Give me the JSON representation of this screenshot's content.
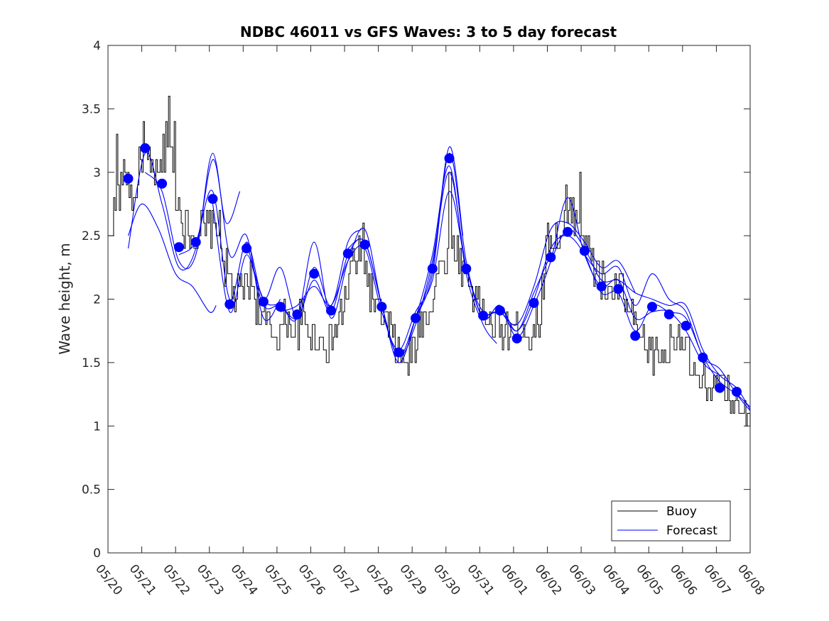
{
  "chart_data": {
    "type": "line",
    "title": "NDBC 46011 vs GFS Waves: 3 to 5 day forecast",
    "ylabel": "Wave height, m",
    "xlabel": "",
    "ylim": [
      0,
      4
    ],
    "yticks": [
      0,
      0.5,
      1,
      1.5,
      2,
      2.5,
      3,
      3.5,
      4
    ],
    "xlim": [
      "05/20",
      "06/08"
    ],
    "xticks": [
      "05/20",
      "05/21",
      "05/22",
      "05/23",
      "05/24",
      "05/25",
      "05/26",
      "05/27",
      "05/28",
      "05/29",
      "05/30",
      "05/31",
      "06/01",
      "06/02",
      "06/03",
      "06/04",
      "06/05",
      "06/06",
      "06/07",
      "06/08"
    ],
    "legend": {
      "placement": "bottom-right",
      "entries": [
        "Buoy",
        "Forecast"
      ]
    },
    "colors": {
      "buoy": "#000000",
      "forecast": "#0000ff"
    },
    "buoy_anchors": [
      [
        0.0,
        2.45
      ],
      [
        0.25,
        2.8
      ],
      [
        0.5,
        3.0
      ],
      [
        0.75,
        2.75
      ],
      [
        1.0,
        3.15
      ],
      [
        1.25,
        3.0
      ],
      [
        1.5,
        2.95
      ],
      [
        1.75,
        3.25
      ],
      [
        2.0,
        2.85
      ],
      [
        2.25,
        2.6
      ],
      [
        2.5,
        2.5
      ],
      [
        2.75,
        2.55
      ],
      [
        3.0,
        2.55
      ],
      [
        3.25,
        2.6
      ],
      [
        3.5,
        2.2
      ],
      [
        3.75,
        2.0
      ],
      [
        4.0,
        2.1
      ],
      [
        4.25,
        2.15
      ],
      [
        4.5,
        1.85
      ],
      [
        4.75,
        1.8
      ],
      [
        5.0,
        1.7
      ],
      [
        5.25,
        1.85
      ],
      [
        5.5,
        1.75
      ],
      [
        5.75,
        1.85
      ],
      [
        6.0,
        1.75
      ],
      [
        6.25,
        1.7
      ],
      [
        6.5,
        1.65
      ],
      [
        6.75,
        1.75
      ],
      [
        7.0,
        2.0
      ],
      [
        7.25,
        2.3
      ],
      [
        7.5,
        2.3
      ],
      [
        7.75,
        2.1
      ],
      [
        8.0,
        1.9
      ],
      [
        8.25,
        1.8
      ],
      [
        8.5,
        1.6
      ],
      [
        8.75,
        1.5
      ],
      [
        9.0,
        1.55
      ],
      [
        9.25,
        1.8
      ],
      [
        9.5,
        1.95
      ],
      [
        9.75,
        2.2
      ],
      [
        10.0,
        2.3
      ],
      [
        10.25,
        2.4
      ],
      [
        10.5,
        2.25
      ],
      [
        10.75,
        2.1
      ],
      [
        11.0,
        1.95
      ],
      [
        11.25,
        1.8
      ],
      [
        11.5,
        1.75
      ],
      [
        11.75,
        1.75
      ],
      [
        12.0,
        1.75
      ],
      [
        12.25,
        1.8
      ],
      [
        12.5,
        1.7
      ],
      [
        12.75,
        1.85
      ],
      [
        13.0,
        2.5
      ],
      [
        13.25,
        2.45
      ],
      [
        13.5,
        2.55
      ],
      [
        13.75,
        2.7
      ],
      [
        14.0,
        2.6
      ],
      [
        14.25,
        2.3
      ],
      [
        14.5,
        2.2
      ],
      [
        14.75,
        2.05
      ],
      [
        15.0,
        2.1
      ],
      [
        15.25,
        2.05
      ],
      [
        15.5,
        1.8
      ],
      [
        15.75,
        1.65
      ],
      [
        16.0,
        1.6
      ],
      [
        16.25,
        1.55
      ],
      [
        16.5,
        1.55
      ],
      [
        16.75,
        1.75
      ],
      [
        17.0,
        1.7
      ],
      [
        17.25,
        1.45
      ],
      [
        17.5,
        1.3
      ],
      [
        17.75,
        1.35
      ],
      [
        18.0,
        1.3
      ],
      [
        18.25,
        1.25
      ],
      [
        18.5,
        1.2
      ],
      [
        18.75,
        1.15
      ],
      [
        19.0,
        1.12
      ]
    ],
    "buoy_peaks": [
      [
        1.7,
        3.4
      ],
      [
        1.8,
        3.6
      ],
      [
        1.95,
        3.4
      ],
      [
        0.25,
        3.3
      ],
      [
        1.05,
        3.4
      ],
      [
        13.95,
        3.0
      ],
      [
        13.55,
        2.9
      ],
      [
        10.1,
        2.95
      ],
      [
        7.55,
        2.6
      ]
    ],
    "forecast_markers": [
      [
        0.6,
        2.95
      ],
      [
        1.1,
        3.19
      ],
      [
        1.6,
        2.91
      ],
      [
        2.1,
        2.41
      ],
      [
        2.6,
        2.45
      ],
      [
        3.1,
        2.79
      ],
      [
        3.6,
        1.96
      ],
      [
        4.1,
        2.4
      ],
      [
        4.6,
        1.98
      ],
      [
        5.1,
        1.94
      ],
      [
        5.6,
        1.88
      ],
      [
        6.1,
        2.2
      ],
      [
        6.6,
        1.91
      ],
      [
        7.1,
        2.36
      ],
      [
        7.6,
        2.43
      ],
      [
        8.1,
        1.94
      ],
      [
        8.6,
        1.58
      ],
      [
        9.1,
        1.85
      ],
      [
        9.6,
        2.24
      ],
      [
        10.1,
        3.11
      ],
      [
        10.6,
        2.24
      ],
      [
        11.1,
        1.87
      ],
      [
        11.6,
        1.91
      ],
      [
        12.1,
        1.69
      ],
      [
        12.6,
        1.97
      ],
      [
        13.1,
        2.33
      ],
      [
        13.6,
        2.53
      ],
      [
        14.1,
        2.38
      ],
      [
        14.6,
        2.1
      ],
      [
        15.1,
        2.08
      ],
      [
        15.6,
        1.71
      ],
      [
        16.1,
        1.94
      ],
      [
        16.6,
        1.88
      ],
      [
        17.1,
        1.79
      ],
      [
        17.6,
        1.54
      ],
      [
        18.1,
        1.3
      ],
      [
        18.6,
        1.27
      ]
    ],
    "forecast_runs": [
      [
        [
          0.6,
          2.5
        ],
        [
          1.0,
          2.75
        ],
        [
          1.5,
          2.55
        ],
        [
          2.0,
          2.2
        ],
        [
          2.5,
          2.1
        ],
        [
          3.0,
          1.9
        ],
        [
          3.2,
          1.95
        ]
      ],
      [
        [
          0.6,
          2.4
        ],
        [
          1.1,
          3.15
        ],
        [
          1.6,
          2.75
        ],
        [
          2.1,
          2.25
        ],
        [
          2.6,
          2.4
        ],
        [
          3.1,
          3.1
        ],
        [
          3.5,
          2.6
        ],
        [
          3.9,
          2.85
        ]
      ],
      [
        [
          1.1,
          3.0
        ],
        [
          1.6,
          2.85
        ],
        [
          2.1,
          2.3
        ],
        [
          2.6,
          2.35
        ],
        [
          3.1,
          3.15
        ],
        [
          3.6,
          2.35
        ],
        [
          4.1,
          2.5
        ],
        [
          4.6,
          1.85
        ],
        [
          5.1,
          2.0
        ]
      ],
      [
        [
          2.1,
          2.35
        ],
        [
          2.6,
          2.45
        ],
        [
          3.1,
          2.85
        ],
        [
          3.6,
          2.0
        ],
        [
          4.1,
          2.45
        ],
        [
          4.6,
          2.0
        ],
        [
          5.1,
          2.25
        ],
        [
          5.6,
          1.85
        ],
        [
          6.1,
          2.25
        ],
        [
          6.6,
          1.95
        ],
        [
          7.1,
          2.45
        ],
        [
          7.5,
          2.55
        ]
      ],
      [
        [
          3.1,
          2.75
        ],
        [
          3.6,
          1.9
        ],
        [
          4.1,
          2.35
        ],
        [
          4.6,
          1.95
        ],
        [
          5.1,
          1.95
        ],
        [
          5.6,
          1.85
        ],
        [
          6.1,
          2.45
        ],
        [
          6.6,
          1.85
        ],
        [
          7.1,
          2.3
        ],
        [
          7.6,
          2.55
        ],
        [
          8.1,
          1.95
        ],
        [
          8.6,
          1.55
        ],
        [
          9.1,
          1.85
        ],
        [
          9.6,
          2.25
        ],
        [
          10.1,
          3.2
        ],
        [
          10.5,
          2.5
        ]
      ],
      [
        [
          4.1,
          2.45
        ],
        [
          4.6,
          2.0
        ],
        [
          5.1,
          1.95
        ],
        [
          5.6,
          1.85
        ],
        [
          6.1,
          2.15
        ],
        [
          6.6,
          1.9
        ],
        [
          7.1,
          2.35
        ],
        [
          7.6,
          2.45
        ],
        [
          8.1,
          1.95
        ],
        [
          8.6,
          1.5
        ],
        [
          9.1,
          1.85
        ],
        [
          9.6,
          2.35
        ],
        [
          10.1,
          3.05
        ],
        [
          10.6,
          2.2
        ],
        [
          11.1,
          1.8
        ],
        [
          11.5,
          1.65
        ]
      ],
      [
        [
          5.1,
          1.9
        ],
        [
          5.6,
          1.95
        ],
        [
          6.1,
          2.1
        ],
        [
          6.6,
          1.95
        ],
        [
          7.1,
          2.3
        ],
        [
          7.6,
          2.4
        ],
        [
          8.1,
          1.9
        ],
        [
          8.6,
          1.6
        ],
        [
          9.1,
          1.9
        ],
        [
          9.6,
          2.15
        ],
        [
          10.1,
          2.85
        ],
        [
          10.6,
          2.25
        ],
        [
          11.1,
          1.85
        ],
        [
          11.6,
          1.95
        ],
        [
          12.1,
          1.75
        ],
        [
          12.6,
          2.05
        ],
        [
          13.1,
          2.35
        ]
      ],
      [
        [
          7.1,
          2.4
        ],
        [
          7.6,
          2.45
        ],
        [
          8.1,
          1.95
        ],
        [
          8.6,
          1.55
        ],
        [
          9.1,
          1.8
        ],
        [
          9.6,
          2.3
        ],
        [
          10.1,
          3.0
        ],
        [
          10.6,
          2.25
        ],
        [
          11.1,
          1.9
        ],
        [
          11.6,
          1.9
        ],
        [
          12.1,
          1.8
        ],
        [
          12.6,
          2.1
        ],
        [
          13.1,
          2.55
        ],
        [
          13.6,
          2.6
        ],
        [
          14.1,
          2.45
        ],
        [
          14.6,
          2.25
        ],
        [
          15.1,
          2.3
        ],
        [
          15.6,
          2.05
        ]
      ],
      [
        [
          9.1,
          1.85
        ],
        [
          9.6,
          2.2
        ],
        [
          10.1,
          3.15
        ],
        [
          10.6,
          2.3
        ],
        [
          11.1,
          1.85
        ],
        [
          11.6,
          1.95
        ],
        [
          12.1,
          1.7
        ],
        [
          12.6,
          1.95
        ],
        [
          13.1,
          2.3
        ],
        [
          13.6,
          2.8
        ],
        [
          14.1,
          2.35
        ],
        [
          14.6,
          2.1
        ],
        [
          15.1,
          2.15
        ],
        [
          15.6,
          1.85
        ],
        [
          16.1,
          1.9
        ],
        [
          16.6,
          1.9
        ],
        [
          17.1,
          1.75
        ],
        [
          17.6,
          1.5
        ],
        [
          18.1,
          1.4
        ]
      ],
      [
        [
          11.1,
          1.85
        ],
        [
          11.6,
          1.9
        ],
        [
          12.1,
          1.75
        ],
        [
          12.6,
          2.0
        ],
        [
          13.1,
          2.4
        ],
        [
          13.6,
          2.5
        ],
        [
          14.1,
          2.35
        ],
        [
          14.6,
          2.05
        ],
        [
          15.1,
          2.05
        ],
        [
          15.6,
          1.75
        ],
        [
          16.1,
          1.95
        ],
        [
          16.6,
          1.9
        ],
        [
          17.1,
          1.85
        ],
        [
          17.6,
          1.55
        ],
        [
          18.1,
          1.35
        ],
        [
          18.6,
          1.25
        ],
        [
          19.0,
          1.15
        ]
      ],
      [
        [
          13.1,
          2.3
        ],
        [
          13.6,
          2.55
        ],
        [
          14.1,
          2.4
        ],
        [
          14.6,
          2.15
        ],
        [
          15.1,
          2.15
        ],
        [
          15.6,
          2.05
        ],
        [
          16.1,
          2.0
        ],
        [
          16.6,
          1.95
        ],
        [
          17.1,
          1.95
        ],
        [
          17.6,
          1.6
        ],
        [
          18.1,
          1.4
        ],
        [
          18.6,
          1.3
        ],
        [
          19.0,
          1.13
        ]
      ],
      [
        [
          14.1,
          2.35
        ],
        [
          14.6,
          2.2
        ],
        [
          15.1,
          2.25
        ],
        [
          15.6,
          1.95
        ],
        [
          16.1,
          2.2
        ],
        [
          16.6,
          2.0
        ],
        [
          17.1,
          1.9
        ],
        [
          17.6,
          1.55
        ],
        [
          18.1,
          1.45
        ],
        [
          18.6,
          1.25
        ],
        [
          19.0,
          1.12
        ]
      ]
    ]
  }
}
